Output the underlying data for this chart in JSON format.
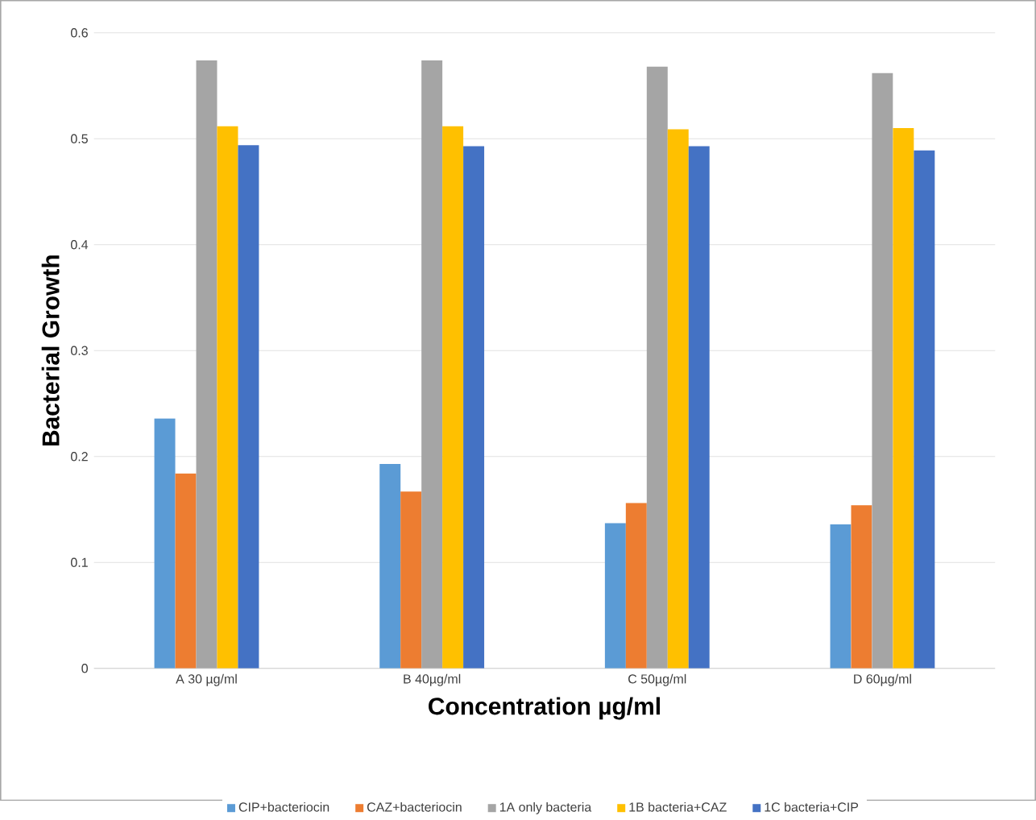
{
  "chart_data": {
    "type": "bar",
    "xlabel": "Concentration µg/ml",
    "ylabel": "Bacterial Growth",
    "categories": [
      "A 30 µg/ml",
      "B 40µg/ml",
      "C 50µg/ml",
      "D 60µg/ml"
    ],
    "series": [
      {
        "name": "CIP+bacteriocin",
        "color": "#5b9bd5",
        "values": [
          0.236,
          0.193,
          0.137,
          0.136
        ]
      },
      {
        "name": "CAZ+bacteriocin",
        "color": "#ed7d31",
        "values": [
          0.184,
          0.167,
          0.156,
          0.154
        ]
      },
      {
        "name": "1A only bacteria",
        "color": "#a5a5a5",
        "values": [
          0.574,
          0.574,
          0.568,
          0.562
        ]
      },
      {
        "name": "1B bacteria+CAZ",
        "color": "#ffc000",
        "values": [
          0.512,
          0.512,
          0.509,
          0.51
        ]
      },
      {
        "name": "1C bacteria+CIP",
        "color": "#4472c4",
        "values": [
          0.494,
          0.493,
          0.493,
          0.489
        ]
      }
    ],
    "ylim": [
      0,
      0.6
    ],
    "yticks": [
      0,
      0.1,
      0.2,
      0.3,
      0.4,
      0.5,
      0.6
    ],
    "grid": "y",
    "legend": "bottom"
  }
}
